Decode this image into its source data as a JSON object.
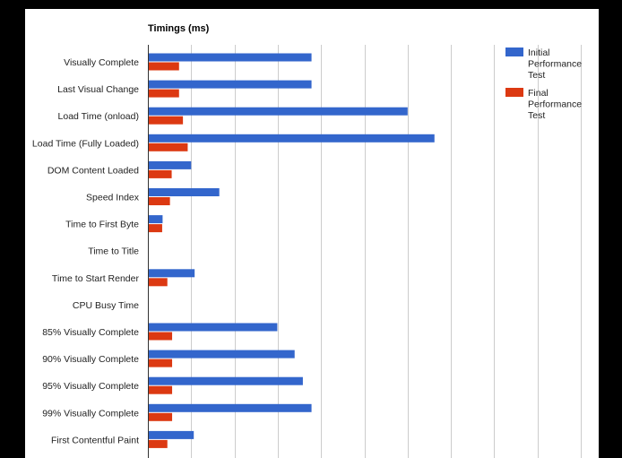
{
  "chart_data": {
    "type": "bar",
    "orientation": "horizontal",
    "title": "Timings (ms)",
    "categories": [
      "Visually Complete",
      "Last Visual Change",
      "Load Time (onload)",
      "Load Time (Fully Loaded)",
      "DOM Content Loaded",
      "Speed Index",
      "Time to First Byte",
      "Time to Title",
      "Time to Start Render",
      "CPU Busy Time",
      "85% Visually Complete",
      "90% Visually Complete",
      "95% Visually Complete",
      "99% Visually Complete",
      "First Contentful Paint"
    ],
    "series": [
      {
        "name": "Initial Performance Test",
        "legend_lines": [
          "Initial",
          "Performance",
          "Test"
        ],
        "color": "#3366cc",
        "values": [
          3780,
          3780,
          6000,
          6620,
          1000,
          1650,
          340,
          0,
          1080,
          0,
          2990,
          3390,
          3580,
          3780,
          1060
        ]
      },
      {
        "name": "Final Performance Test",
        "legend_lines": [
          "Final",
          "Performance",
          "Test"
        ],
        "color": "#dc3912",
        "values": [
          720,
          720,
          810,
          920,
          550,
          510,
          330,
          0,
          450,
          0,
          560,
          560,
          560,
          560,
          450
        ]
      }
    ],
    "xlim": [
      0,
      10000
    ],
    "x_gridlines": [
      0,
      1000,
      2000,
      3000,
      4000,
      5000,
      6000,
      7000,
      8000,
      9000,
      10000
    ],
    "grid": true,
    "legend_position": "top-right"
  }
}
